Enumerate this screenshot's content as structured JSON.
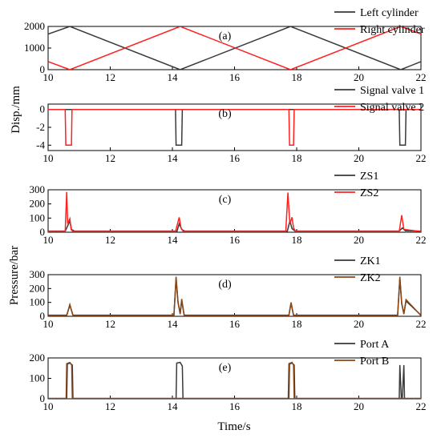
{
  "figure": {
    "shared_xlabel": "Time/s",
    "disp_ylabel": "Disp./mm",
    "pressure_ylabel": "Pressure/bar"
  },
  "chart_data": [
    {
      "type": "line",
      "panel_label": "(a)",
      "xlim": [
        10,
        22
      ],
      "ylim": [
        0,
        2000
      ],
      "xticks": [
        "10",
        "12",
        "14",
        "16",
        "18",
        "20",
        "22"
      ],
      "yticks": [
        "0",
        "1000",
        "2000"
      ],
      "grid": false,
      "legend_position": "top-right",
      "series": [
        {
          "name": "Left cylinder",
          "color": "#3a3a3a",
          "x": [
            10,
            10.7,
            14.25,
            17.8,
            21.35,
            22
          ],
          "y": [
            1650,
            2000,
            0,
            2000,
            0,
            370
          ]
        },
        {
          "name": "Right cylinder",
          "color": "#ff2020",
          "x": [
            10,
            10.7,
            14.25,
            17.8,
            21.35,
            22
          ],
          "y": [
            370,
            0,
            2000,
            0,
            2000,
            1650
          ]
        }
      ]
    },
    {
      "type": "line",
      "panel_label": "(b)",
      "xlim": [
        10,
        22
      ],
      "ylim": [
        -4.6,
        0.6
      ],
      "xticks": [
        "10",
        "12",
        "14",
        "16",
        "18",
        "20",
        "22"
      ],
      "yticks": [
        "0",
        "-2",
        "-4"
      ],
      "grid": false,
      "legend_position": "top-right",
      "series": [
        {
          "name": "Signal valve 1",
          "color": "#3a3a3a",
          "x": [
            10,
            14.1,
            14.12,
            14.3,
            14.32,
            21.3,
            21.32,
            21.5,
            21.52,
            22
          ],
          "y": [
            0,
            0,
            -4,
            -4,
            0,
            0,
            -4,
            -4,
            0,
            0
          ]
        },
        {
          "name": "Signal valve 2",
          "color": "#ff2020",
          "x": [
            10,
            10.55,
            10.57,
            10.75,
            10.77,
            17.75,
            17.77,
            17.9,
            17.92,
            22
          ],
          "y": [
            0,
            0,
            -4,
            -4,
            0,
            0,
            -4,
            -4,
            0,
            0
          ]
        }
      ]
    },
    {
      "type": "line",
      "panel_label": "(c)",
      "xlim": [
        10,
        22
      ],
      "ylim": [
        0,
        300
      ],
      "xticks": [
        "10",
        "12",
        "14",
        "16",
        "18",
        "20",
        "22"
      ],
      "yticks": [
        "0",
        "100",
        "200",
        "300"
      ],
      "grid": false,
      "legend_position": "top-right",
      "series": [
        {
          "name": "ZS1",
          "color": "#3a3a3a",
          "x": [
            10,
            10.55,
            10.6,
            10.7,
            10.75,
            10.85,
            14.15,
            14.22,
            14.3,
            14.4,
            17.7,
            17.78,
            17.85,
            17.95,
            21.3,
            21.4,
            21.5,
            22
          ],
          "y": [
            8,
            8,
            30,
            80,
            20,
            8,
            8,
            60,
            20,
            8,
            8,
            80,
            25,
            8,
            8,
            30,
            10,
            8
          ]
        },
        {
          "name": "ZS2",
          "color": "#ff2020",
          "x": [
            10,
            10.55,
            10.6,
            10.63,
            10.7,
            10.74,
            10.8,
            14.1,
            14.22,
            14.28,
            14.35,
            17.65,
            17.72,
            17.78,
            17.85,
            17.9,
            17.97,
            21.3,
            21.38,
            21.45,
            22
          ],
          "y": [
            5,
            5,
            285,
            60,
            95,
            20,
            5,
            5,
            105,
            30,
            5,
            5,
            280,
            60,
            105,
            30,
            5,
            5,
            120,
            20,
            5
          ]
        }
      ]
    },
    {
      "type": "line",
      "panel_label": "(d)",
      "xlim": [
        10,
        22
      ],
      "ylim": [
        0,
        300
      ],
      "xticks": [
        "10",
        "12",
        "14",
        "16",
        "18",
        "20",
        "22"
      ],
      "yticks": [
        "0",
        "100",
        "200",
        "300"
      ],
      "grid": false,
      "legend_position": "top-right",
      "series": [
        {
          "name": "ZK1",
          "color": "#3a3a3a",
          "x": [
            10,
            10.6,
            10.7,
            10.8,
            14.05,
            14.12,
            14.18,
            14.25,
            14.3,
            14.38,
            17.75,
            17.82,
            17.9,
            21.25,
            21.32,
            21.38,
            21.45,
            21.52,
            22
          ],
          "y": [
            8,
            8,
            80,
            8,
            8,
            270,
            100,
            20,
            110,
            8,
            8,
            95,
            8,
            8,
            270,
            90,
            20,
            110,
            8
          ]
        },
        {
          "name": "ZK2",
          "color": "#8b4513",
          "x": [
            10,
            10.6,
            10.7,
            10.8,
            14.05,
            14.12,
            14.18,
            14.25,
            14.3,
            14.38,
            17.75,
            17.82,
            17.9,
            21.25,
            21.32,
            21.38,
            21.45,
            21.52,
            22
          ],
          "y": [
            5,
            5,
            85,
            5,
            5,
            285,
            105,
            15,
            125,
            5,
            5,
            100,
            5,
            5,
            285,
            95,
            15,
            120,
            5
          ]
        }
      ]
    },
    {
      "type": "line",
      "panel_label": "(e)",
      "xlim": [
        10,
        22
      ],
      "ylim": [
        0,
        200
      ],
      "xticks": [
        "10",
        "12",
        "14",
        "16",
        "18",
        "20",
        "22"
      ],
      "yticks": [
        "0",
        "100",
        "200"
      ],
      "grid": false,
      "legend_position": "top-right",
      "series": [
        {
          "name": "Port A",
          "color": "#3a3a3a",
          "x": [
            10,
            10.6,
            10.62,
            10.7,
            10.78,
            10.8,
            14.12,
            14.14,
            14.25,
            14.32,
            14.34,
            17.75,
            17.77,
            17.85,
            17.92,
            17.94,
            21.3,
            21.32,
            21.37,
            21.4,
            21.45,
            21.47,
            22
          ],
          "y": [
            0,
            0,
            170,
            175,
            165,
            0,
            0,
            175,
            178,
            160,
            0,
            0,
            170,
            175,
            165,
            0,
            0,
            165,
            0,
            0,
            165,
            0,
            0
          ]
        },
        {
          "name": "Port B",
          "color": "#8b4513",
          "x": [
            10,
            10.58,
            10.6,
            10.7,
            10.76,
            10.78,
            17.73,
            17.75,
            17.85,
            17.9,
            17.92,
            22
          ],
          "y": [
            2,
            2,
            172,
            178,
            165,
            2,
            2,
            172,
            178,
            165,
            2,
            2
          ]
        }
      ]
    }
  ]
}
